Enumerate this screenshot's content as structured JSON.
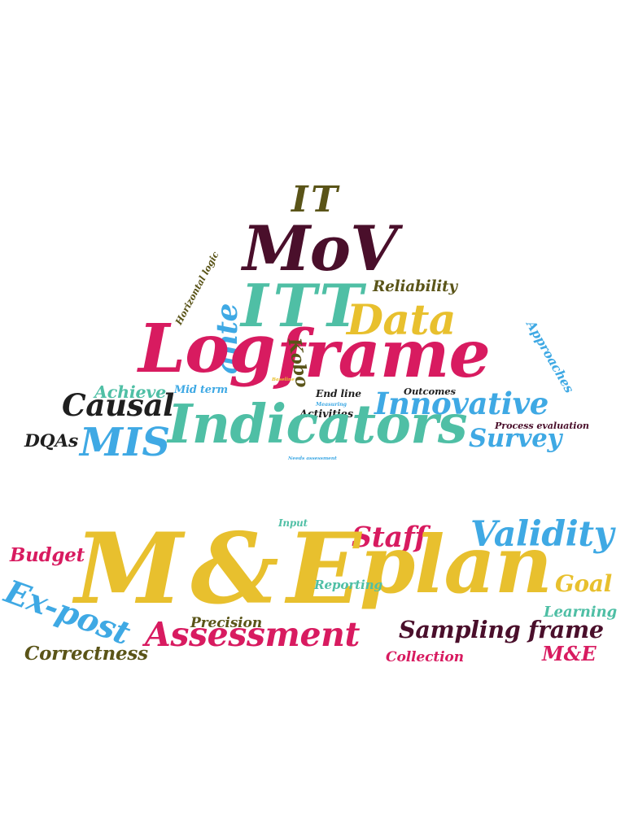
{
  "colors": {
    "crimson": "#d81b60",
    "yellow": "#e8c02e",
    "teal": "#4fbfa5",
    "sky": "#3fa9e4",
    "maroon": "#4a0f2b",
    "olive": "#5a5418",
    "black": "#1f1f1f"
  },
  "words": [
    {
      "text": "IT",
      "color": "olive"
    },
    {
      "text": "MoV",
      "color": "maroon"
    },
    {
      "text": "Horizontal logic",
      "color": "olive"
    },
    {
      "text": "ITT",
      "color": "teal"
    },
    {
      "text": "Reliability",
      "color": "olive"
    },
    {
      "text": "ante",
      "color": "sky"
    },
    {
      "text": "Data",
      "color": "yellow"
    },
    {
      "text": "Approaches",
      "color": "sky"
    },
    {
      "text": "Log",
      "color": "crimson"
    },
    {
      "text": "frame",
      "color": "crimson"
    },
    {
      "text": "Kobo",
      "color": "olive"
    },
    {
      "text": "Baseline",
      "color": "yellow"
    },
    {
      "text": "Outcomes",
      "color": "black"
    },
    {
      "text": "Achieve",
      "color": "teal"
    },
    {
      "text": "Mid term",
      "color": "sky"
    },
    {
      "text": "End line",
      "color": "black"
    },
    {
      "text": "Measuring",
      "color": "sky"
    },
    {
      "text": "Causal",
      "color": "black"
    },
    {
      "text": "Innovative",
      "color": "sky"
    },
    {
      "text": "Activities",
      "color": "black"
    },
    {
      "text": "Process evaluation",
      "color": "maroon"
    },
    {
      "text": "DQAs",
      "color": "black"
    },
    {
      "text": "MIS",
      "color": "sky"
    },
    {
      "text": "Indicators",
      "color": "teal"
    },
    {
      "text": "Survey",
      "color": "sky"
    },
    {
      "text": "Needs assessment",
      "color": "sky"
    },
    {
      "text": "Input",
      "color": "teal"
    },
    {
      "text": "Staff",
      "color": "crimson"
    },
    {
      "text": "Validity",
      "color": "sky"
    },
    {
      "text": "Budget",
      "color": "crimson"
    },
    {
      "text": "M&E",
      "color": "yellow"
    },
    {
      "text": "plan",
      "color": "yellow"
    },
    {
      "text": "Reporting",
      "color": "teal"
    },
    {
      "text": "Goal",
      "color": "yellow"
    },
    {
      "text": "Ex-post",
      "color": "sky"
    },
    {
      "text": "Learning",
      "color": "teal"
    },
    {
      "text": "Precision",
      "color": "olive"
    },
    {
      "text": "Assessment",
      "color": "crimson"
    },
    {
      "text": "Sampling frame",
      "color": "maroon"
    },
    {
      "text": "Correctness",
      "color": "olive"
    },
    {
      "text": "Collection",
      "color": "crimson"
    },
    {
      "text": "M&E",
      "color": "crimson"
    }
  ]
}
